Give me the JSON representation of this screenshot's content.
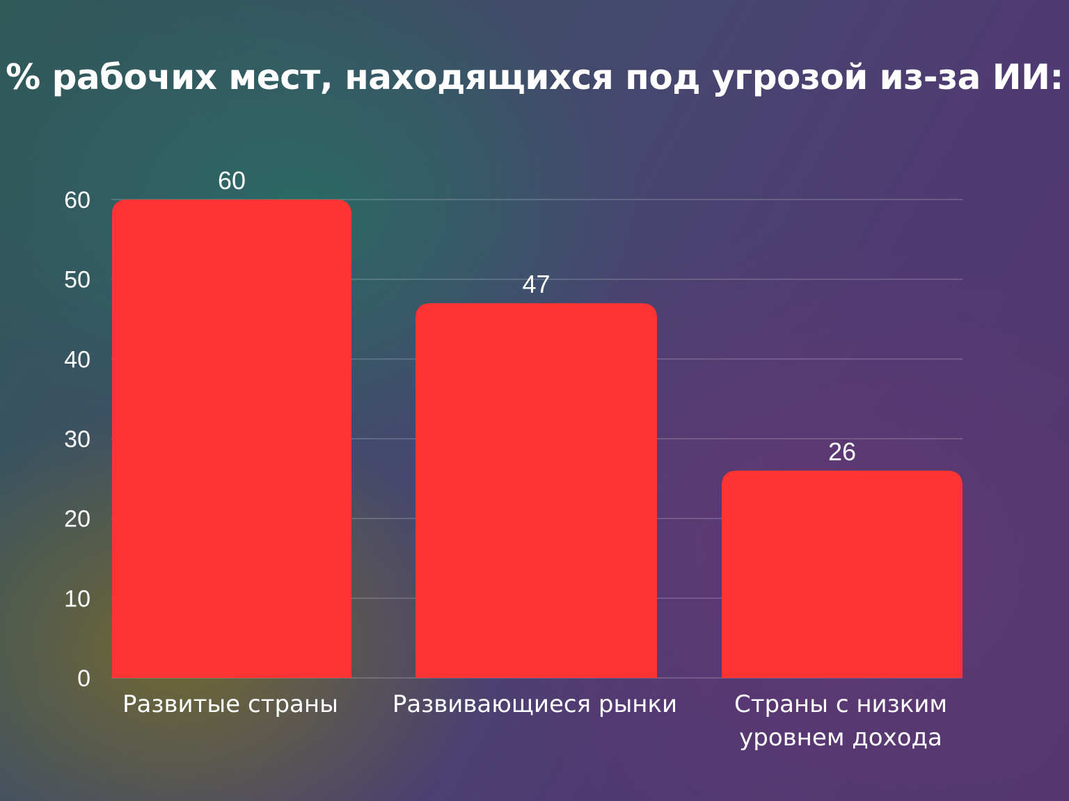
{
  "chart_data": {
    "type": "bar",
    "title": "% рабочих мест, находящихся под угрозой из-за ИИ:",
    "categories": [
      [
        "Развитые страны"
      ],
      [
        "Развивающиеся рынки"
      ],
      [
        "Страны с низким",
        "уровнем дохода"
      ]
    ],
    "values": [
      60,
      47,
      26
    ],
    "ylim": [
      0,
      60
    ],
    "yticks": [
      0,
      10,
      20,
      30,
      40,
      50,
      60
    ],
    "grid": true,
    "data_labels": true,
    "bar_color": "#fd3433"
  }
}
